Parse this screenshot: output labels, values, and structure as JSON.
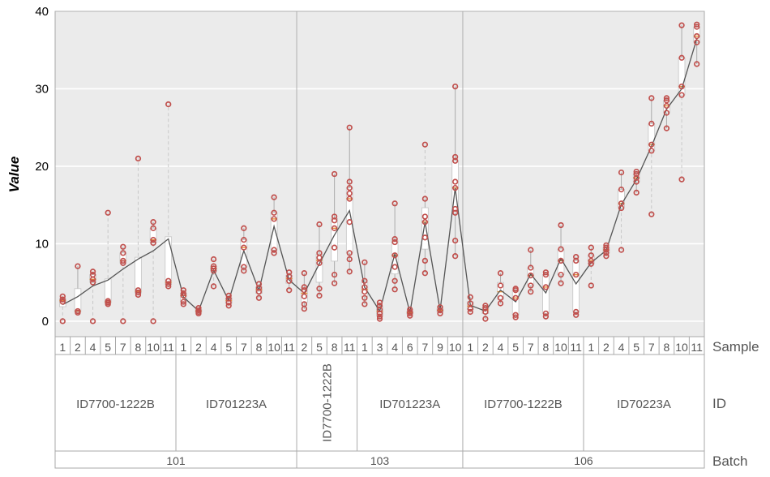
{
  "chart_data": {
    "type": "box-scatter",
    "ylabel": "Value",
    "ylim": [
      -2,
      40
    ],
    "yticks": [
      0,
      10,
      20,
      30,
      40
    ],
    "grid": true,
    "colors": {
      "background": "#ebebeb",
      "point": "#c0504d",
      "line": "#555555",
      "median": "#e69138",
      "box": "#ffffff",
      "whisker": "#aaaaaa",
      "border": "#aaaaaa"
    },
    "row_labels": {
      "sample": "Sample",
      "id": "ID",
      "batch": "Batch"
    },
    "batches": [
      {
        "name": "101",
        "ids": [
          {
            "name": "ID7700-1222B",
            "samples": [
              {
                "sample": "1",
                "values": [
                  0,
                  2.5,
                  2.8,
                  3.2
                ]
              },
              {
                "sample": "2",
                "values": [
                  1.1,
                  1.3,
                  7.1
                ]
              },
              {
                "sample": "4",
                "values": [
                  0,
                  5,
                  5.4,
                  6,
                  6.4
                ]
              },
              {
                "sample": "5",
                "values": [
                  2.2,
                  2.4,
                  2.6,
                  14
                ]
              },
              {
                "sample": "7",
                "values": [
                  0,
                  7.5,
                  7.8,
                  8.8,
                  9.6
                ]
              },
              {
                "sample": "8",
                "values": [
                  3.4,
                  3.7,
                  4,
                  21
                ]
              },
              {
                "sample": "10",
                "values": [
                  0,
                  10.1,
                  10.5,
                  12,
                  12.8
                ]
              },
              {
                "sample": "11",
                "values": [
                  4.5,
                  4.8,
                  5.2,
                  28
                ]
              }
            ]
          },
          {
            "name": "ID701223A",
            "samples": [
              {
                "sample": "1",
                "values": [
                  2.2,
                  2.5,
                  3.3,
                  3.6,
                  4
                ]
              },
              {
                "sample": "2",
                "values": [
                  1,
                  1.2,
                  1.4,
                  1.7
                ]
              },
              {
                "sample": "4",
                "values": [
                  4.5,
                  6.5,
                  6.8,
                  7.1,
                  8
                ]
              },
              {
                "sample": "5",
                "values": [
                  2,
                  2.4,
                  2.9,
                  3.3
                ]
              },
              {
                "sample": "7",
                "values": [
                  6.5,
                  7,
                  9.5,
                  10.5,
                  12
                ]
              },
              {
                "sample": "8",
                "values": [
                  3,
                  3.8,
                  4.3,
                  4.8
                ]
              },
              {
                "sample": "10",
                "values": [
                  8.8,
                  9.2,
                  13.2,
                  14,
                  16
                ]
              },
              {
                "sample": "11",
                "values": [
                  4,
                  5.2,
                  5.8,
                  6.3
                ]
              }
            ]
          }
        ]
      },
      {
        "name": "103",
        "ids": [
          {
            "name": "ID7700-1222B",
            "samples": [
              {
                "sample": "2",
                "values": [
                  1.6,
                  2.2,
                  3.2,
                  4,
                  4.4,
                  6.2
                ]
              },
              {
                "sample": "5",
                "values": [
                  3.3,
                  4.2,
                  7.5,
                  8.2,
                  8.8,
                  12.5
                ]
              },
              {
                "sample": "8",
                "values": [
                  4.9,
                  6,
                  9.5,
                  12,
                  13,
                  13.5,
                  19
                ]
              },
              {
                "sample": "11",
                "values": [
                  6.4,
                  8,
                  8.8,
                  12.8,
                  15.8,
                  16.5,
                  17.2,
                  18,
                  25
                ]
              }
            ]
          },
          {
            "name": "ID701223A",
            "samples": [
              {
                "sample": "1",
                "values": [
                  2.2,
                  3,
                  3.8,
                  4.4,
                  5.2,
                  7.6
                ]
              },
              {
                "sample": "3",
                "values": [
                  0.3,
                  0.6,
                  1,
                  1.5,
                  2,
                  2.4
                ]
              },
              {
                "sample": "4",
                "values": [
                  4.1,
                  5.2,
                  7,
                  8.5,
                  10.2,
                  10.6,
                  15.2
                ]
              },
              {
                "sample": "6",
                "values": [
                  0.7,
                  1,
                  1.2,
                  1.5
                ]
              },
              {
                "sample": "7",
                "values": [
                  6.2,
                  7.8,
                  10.8,
                  12.8,
                  13.5,
                  15.8,
                  22.8
                ]
              },
              {
                "sample": "9",
                "values": [
                  1,
                  1.4,
                  1.8
                ]
              },
              {
                "sample": "10",
                "values": [
                  8.4,
                  10.4,
                  14,
                  14.5,
                  17.2,
                  18,
                  20.7,
                  21.2,
                  30.3
                ]
              }
            ]
          }
        ]
      },
      {
        "name": "106",
        "ids": [
          {
            "name": "ID7700-1222B",
            "samples": [
              {
                "sample": "1",
                "values": [
                  1.2,
                  1.6,
                  2.3,
                  3.1
                ]
              },
              {
                "sample": "2",
                "values": [
                  0.3,
                  1.2,
                  1.7,
                  2
                ]
              },
              {
                "sample": "4",
                "values": [
                  2.3,
                  3,
                  4.6,
                  6.2
                ]
              },
              {
                "sample": "5",
                "values": [
                  0.5,
                  0.8,
                  3,
                  4,
                  4.2
                ]
              },
              {
                "sample": "7",
                "values": [
                  3.8,
                  4.6,
                  5.9,
                  6.9,
                  9.2
                ]
              },
              {
                "sample": "8",
                "values": [
                  0.6,
                  1,
                  4.4,
                  6,
                  6.3
                ]
              },
              {
                "sample": "10",
                "values": [
                  4.9,
                  6,
                  7.8,
                  9.3,
                  12.4
                ]
              },
              {
                "sample": "11",
                "values": [
                  0.8,
                  1.2,
                  6,
                  7.8,
                  8.3
                ]
              }
            ]
          },
          {
            "name": "ID70223A",
            "samples": [
              {
                "sample": "1",
                "values": [
                  4.6,
                  7.4,
                  7.8,
                  8.5,
                  9.5
                ]
              },
              {
                "sample": "2",
                "values": [
                  8.4,
                  8.8,
                  9.2,
                  9.5,
                  9.8
                ]
              },
              {
                "sample": "4",
                "values": [
                  9.2,
                  14.6,
                  15.2,
                  17,
                  19.2
                ]
              },
              {
                "sample": "5",
                "values": [
                  16.6,
                  18,
                  18.5,
                  19,
                  19.3
                ]
              },
              {
                "sample": "7",
                "values": [
                  13.8,
                  22,
                  22.8,
                  25.5,
                  28.8
                ]
              },
              {
                "sample": "8",
                "values": [
                  24.9,
                  26.9,
                  27.8,
                  28.5,
                  28.8
                ]
              },
              {
                "sample": "10",
                "values": [
                  18.3,
                  29.2,
                  30.3,
                  34,
                  38.2
                ]
              },
              {
                "sample": "11",
                "values": [
                  33.2,
                  36,
                  36.8,
                  38,
                  38.3
                ]
              }
            ]
          }
        ]
      }
    ]
  }
}
